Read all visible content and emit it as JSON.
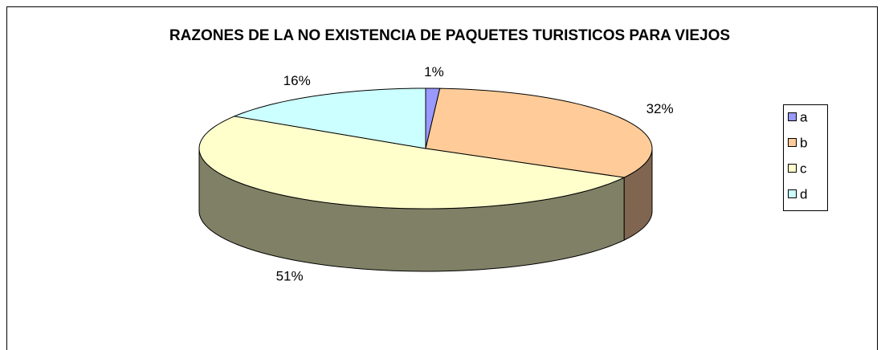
{
  "chart_data": {
    "type": "pie3d",
    "title": "RAZONES DE LA NO EXISTENCIA DE PAQUETES TURISTICOS PARA VIEJOS",
    "categories": [
      "a",
      "b",
      "c",
      "d"
    ],
    "values": [
      1,
      32,
      51,
      16
    ],
    "value_labels": [
      "1%",
      "32%",
      "51%",
      "16%"
    ],
    "colors": [
      "#9999ff",
      "#ffcc99",
      "#ffffcc",
      "#ccffff"
    ],
    "side_colors": [
      "#4d4d80",
      "#806650",
      "#808066",
      "#668080"
    ],
    "legend": "right"
  }
}
